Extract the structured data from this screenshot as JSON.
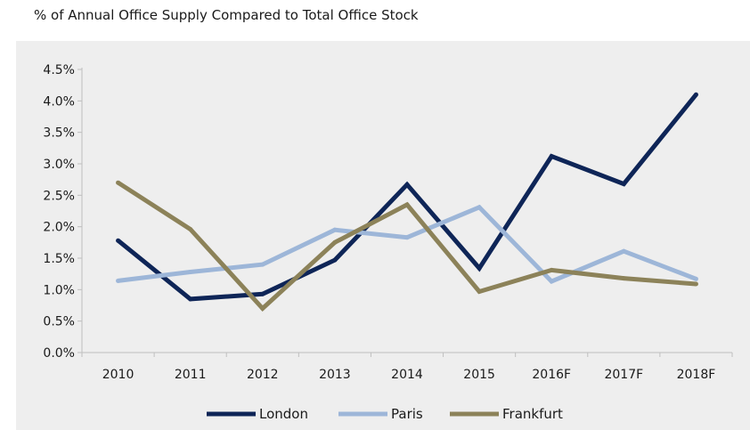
{
  "title": "% of Annual Office Supply Compared to Total Office Stock",
  "colors": {
    "panel_bg": "#eeeeee",
    "axis": "#bfbfbf"
  },
  "chart_data": {
    "type": "line",
    "title": "% of Annual Office Supply Compared to Total Office Stock",
    "xlabel": "",
    "ylabel": "",
    "categories": [
      "2010",
      "2011",
      "2012",
      "2013",
      "2014",
      "2015",
      "2016F",
      "2017F",
      "2018F"
    ],
    "y_ticks": [
      "0.0%",
      "0.5%",
      "1.0%",
      "1.5%",
      "2.0%",
      "2.5%",
      "3.0%",
      "3.5%",
      "4.0%",
      "4.5%"
    ],
    "ylim": [
      0,
      4.5
    ],
    "grid": false,
    "legend_position": "bottom",
    "series": [
      {
        "name": "London",
        "color": "#0e2557",
        "values": [
          1.78,
          0.85,
          0.93,
          1.47,
          2.67,
          1.34,
          3.12,
          2.68,
          4.1
        ]
      },
      {
        "name": "Paris",
        "color": "#9db6d8",
        "values": [
          1.14,
          1.28,
          1.4,
          1.95,
          1.83,
          2.31,
          1.13,
          1.61,
          1.17
        ]
      },
      {
        "name": "Frankfurt",
        "color": "#8c8259",
        "values": [
          2.7,
          1.96,
          0.7,
          1.75,
          2.35,
          0.97,
          1.31,
          1.18,
          1.09
        ]
      }
    ]
  }
}
